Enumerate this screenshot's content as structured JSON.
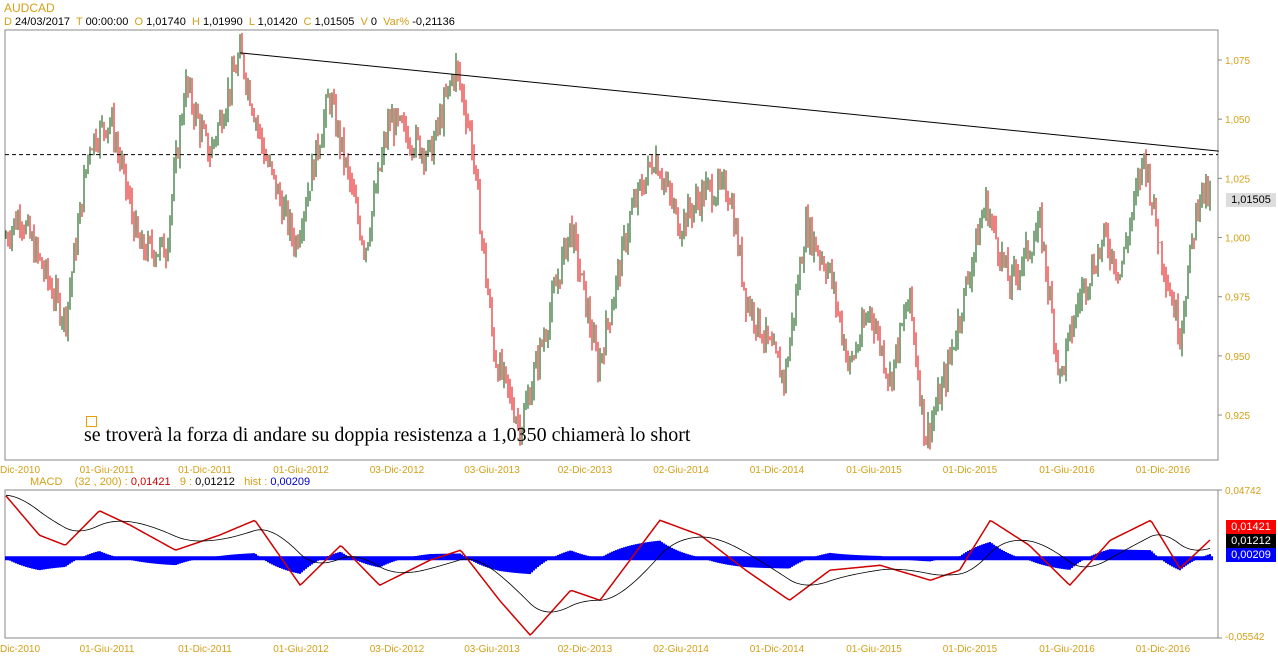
{
  "header": {
    "symbol": "AUDCAD",
    "d": "24/03/2017",
    "t": "00:00:00",
    "o": "1,01740",
    "h": "1,01990",
    "l": "1,01420",
    "c": "1,01505",
    "v": "0",
    "var": "-0,21136"
  },
  "annotation": "se troverà la forza di andare su doppia resistenza a 1,0350 chiamerà lo short",
  "chart_data": [
    {
      "type": "candlestick",
      "title": "AUDCAD",
      "x_unit": "months since Dec-2010",
      "yticks": [
        1.075,
        1.05,
        1.025,
        1.0,
        0.975,
        0.95,
        0.925
      ],
      "ylim": [
        0.9125,
        1.0875
      ],
      "ytick_labels": [
        "1,075",
        "1,050",
        "1,025",
        "1,000",
        "0,975",
        "0,950",
        "0,925"
      ],
      "last_price_label": "1,01505",
      "xtick_labels": [
        "Dic-2010",
        "01-Giu-2011",
        "01-Dic-2011",
        "01-Giu-2012",
        "03-Dic-2012",
        "03-Giu-2013",
        "02-Dic-2013",
        "02-Giu-2014",
        "01-Dic-2014",
        "01-Giu-2015",
        "01-Dic-2015",
        "01-Giu-2016",
        "01-Dic-2016"
      ],
      "path": [
        [
          -0.9,
          1.0
        ],
        [
          0,
          1.01
        ],
        [
          1.2,
          0.99
        ],
        [
          2.8,
          0.965
        ],
        [
          4.3,
          1.04
        ],
        [
          5.6,
          1.05
        ],
        [
          7.4,
          0.995
        ],
        [
          9,
          0.995
        ],
        [
          10.2,
          1.065
        ],
        [
          11.7,
          1.035
        ],
        [
          13.6,
          1.078
        ],
        [
          15.1,
          1.035
        ],
        [
          17,
          0.997
        ],
        [
          19.1,
          1.06
        ],
        [
          21.3,
          0.995
        ],
        [
          22.8,
          1.05
        ],
        [
          25.3,
          1.035
        ],
        [
          26.9,
          1.072
        ],
        [
          27.8,
          1.045
        ],
        [
          29.3,
          0.95
        ],
        [
          30.9,
          0.92
        ],
        [
          32.4,
          0.96
        ],
        [
          34,
          1.005
        ],
        [
          35.7,
          0.945
        ],
        [
          37.7,
          1.01
        ],
        [
          39.2,
          1.035
        ],
        [
          40.7,
          1.005
        ],
        [
          42.3,
          1.02
        ],
        [
          43.8,
          1.02
        ],
        [
          44.8,
          0.975
        ],
        [
          47.2,
          0.94
        ],
        [
          48.5,
          1.005
        ],
        [
          50,
          0.985
        ],
        [
          51.2,
          0.945
        ],
        [
          52.5,
          0.97
        ],
        [
          53.7,
          0.94
        ],
        [
          54.9,
          0.975
        ],
        [
          55.9,
          0.915
        ],
        [
          57.1,
          0.94
        ],
        [
          59.6,
          1.015
        ],
        [
          61.1,
          0.98
        ],
        [
          63,
          1.005
        ],
        [
          64.2,
          0.94
        ],
        [
          65.4,
          0.975
        ],
        [
          67,
          1.0
        ],
        [
          67.9,
          0.985
        ],
        [
          69.4,
          1.035
        ],
        [
          70.4,
          0.995
        ],
        [
          71.6,
          0.96
        ],
        [
          72.8,
          1.02
        ],
        [
          73.6,
          1.015
        ]
      ],
      "trendline": [
        [
          13.6,
          1.078
        ],
        [
          74,
          1.0365
        ]
      ],
      "resistance": 1.035
    },
    {
      "type": "line",
      "title": "MACD",
      "params": "(32 , 200) :",
      "signal_label": "9 :",
      "hist_label": "hist :",
      "macd": "0,01421",
      "signal": "0,01212",
      "hist": "0,00209",
      "ylim": [
        -0.05542,
        0.04742
      ],
      "ytick_labels": [
        "0,04742",
        "-0,05542"
      ],
      "path": [
        [
          -0.9,
          0.0438
        ],
        [
          1.2,
          0.016
        ],
        [
          2.8,
          0.009
        ],
        [
          4.9,
          0.033
        ],
        [
          6.8,
          0.023
        ],
        [
          9.6,
          0.0056
        ],
        [
          12.3,
          0.016
        ],
        [
          14.5,
          0.0264
        ],
        [
          17.3,
          -0.0188
        ],
        [
          19.8,
          0.009
        ],
        [
          22.2,
          -0.0188
        ],
        [
          25.3,
          -0.0014
        ],
        [
          27.2,
          0.0056
        ],
        [
          29.6,
          -0.0292
        ],
        [
          31.5,
          -0.0535
        ],
        [
          34,
          -0.0222
        ],
        [
          35.8,
          -0.0292
        ],
        [
          39.5,
          0.0264
        ],
        [
          42,
          0.016
        ],
        [
          44.8,
          -0.0083
        ],
        [
          47.5,
          -0.0292
        ],
        [
          50,
          -0.0083
        ],
        [
          53.1,
          -0.0049
        ],
        [
          56.2,
          -0.0153
        ],
        [
          58,
          -0.0083
        ],
        [
          59.9,
          0.0264
        ],
        [
          62.3,
          0.009
        ],
        [
          64.8,
          -0.0188
        ],
        [
          67.3,
          0.0125
        ],
        [
          69.8,
          0.0264
        ],
        [
          71.6,
          -0.007
        ],
        [
          73.6,
          0.0142
        ]
      ],
      "colors": {
        "macd": "#d00000",
        "signal": "#000000",
        "hist": "#0000ff"
      }
    }
  ]
}
